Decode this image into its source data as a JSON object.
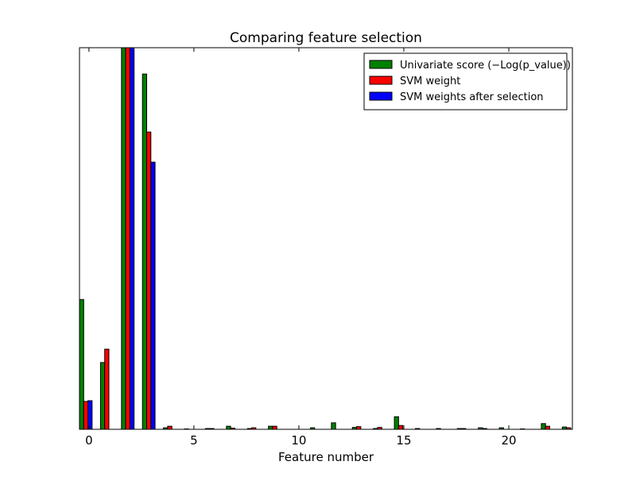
{
  "chart_data": {
    "type": "bar",
    "title": "Comparing feature selection",
    "xlabel": "Feature number",
    "ylabel": "",
    "xlim": [
      -0.45,
      23.03
    ],
    "ylim": [
      0,
      1
    ],
    "xticks": [
      0,
      5,
      10,
      15,
      20
    ],
    "yticks_shown": false,
    "grid": false,
    "legend_placement": "top-right",
    "bar_width": 0.2,
    "x": [
      0,
      1,
      2,
      3,
      4,
      5,
      6,
      7,
      8,
      9,
      10,
      11,
      12,
      13,
      14,
      15,
      16,
      17,
      18,
      19,
      20,
      21,
      22,
      23
    ],
    "series": [
      {
        "name": "Univariate score (−Log(p_value))",
        "color": "#008000",
        "offset": -0.45,
        "values": [
          0.34,
          0.175,
          1.0,
          0.931,
          0.004,
          0.001,
          0.002,
          0.008,
          0.002,
          0.008,
          0.0,
          0.004,
          0.017,
          0.005,
          0.002,
          0.033,
          0.002,
          0.002,
          0.002,
          0.004,
          0.004,
          0.001,
          0.015,
          0.006
        ]
      },
      {
        "name": "SVM weight",
        "color": "#ff0000",
        "offset": -0.25,
        "values": [
          0.073,
          0.21,
          1.0,
          0.779,
          0.008,
          0.0,
          0.002,
          0.003,
          0.004,
          0.008,
          0.0,
          0.0,
          0.0,
          0.007,
          0.005,
          0.01,
          0.0,
          0.0,
          0.002,
          0.002,
          0.0,
          0.0,
          0.008,
          0.004
        ]
      },
      {
        "name": "SVM weights after selection",
        "color": "#0000ff",
        "offset": -0.05,
        "values": [
          0.075,
          0,
          1.0,
          0.7,
          0,
          0,
          0,
          0,
          0,
          0,
          0,
          0,
          0,
          0,
          0,
          0,
          0,
          0,
          0,
          0,
          0,
          0,
          0,
          0
        ]
      }
    ]
  }
}
